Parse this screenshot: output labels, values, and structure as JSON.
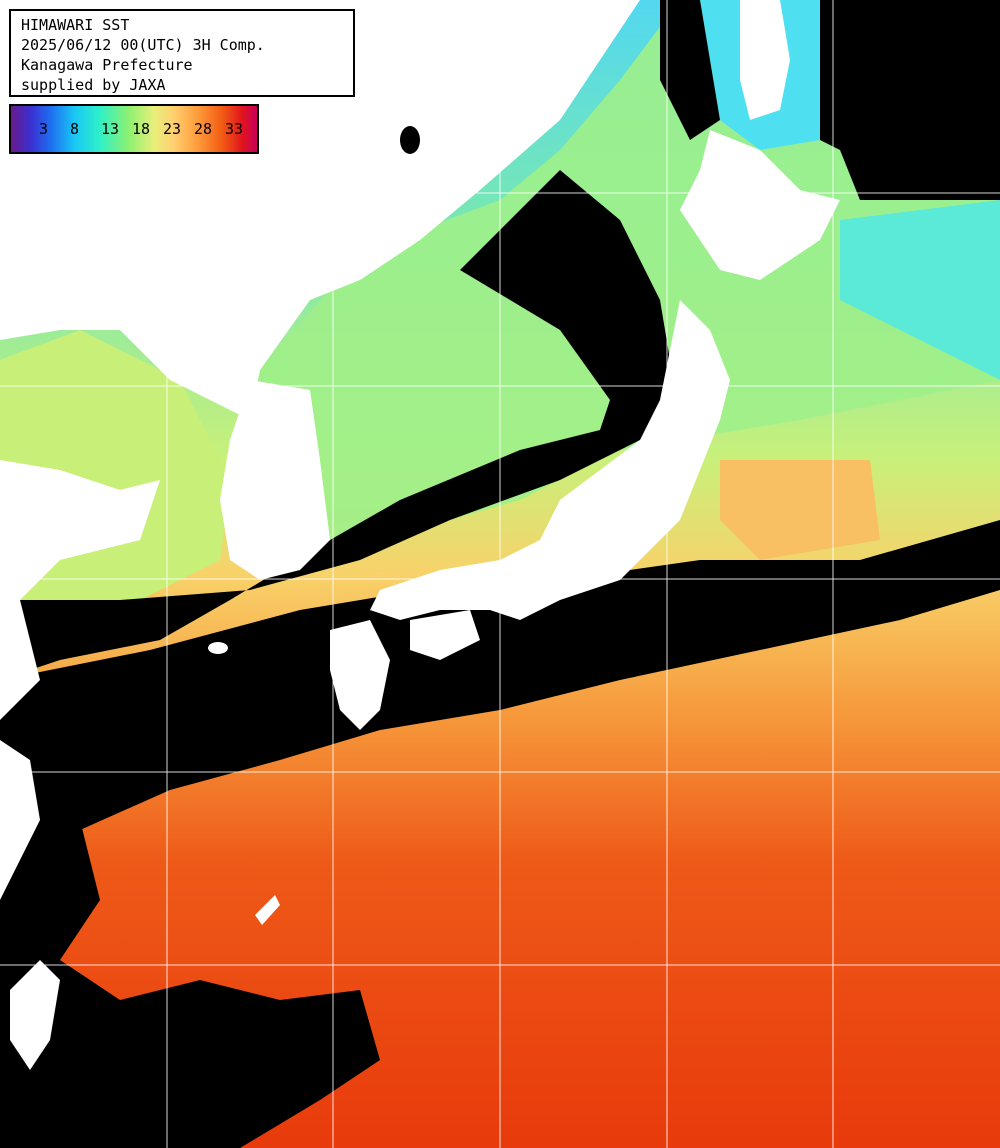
{
  "info": {
    "title": "HIMAWARI SST",
    "datetime": "2025/06/12 00(UTC) 3H Comp.",
    "org": "Kanagawa Prefecture",
    "credit": "supplied by JAXA"
  },
  "colorbar": {
    "ticks": [
      "3",
      "8",
      "13",
      "18",
      "23",
      "28",
      "33"
    ]
  },
  "colors": {
    "land": "#ffffff",
    "cloud_missing": "#000000",
    "grid": "#ffffff",
    "warm": "#ee4a12",
    "temperate": "#ffb25a",
    "cool": "#a8f070",
    "cold": "#3ee8e0"
  }
}
